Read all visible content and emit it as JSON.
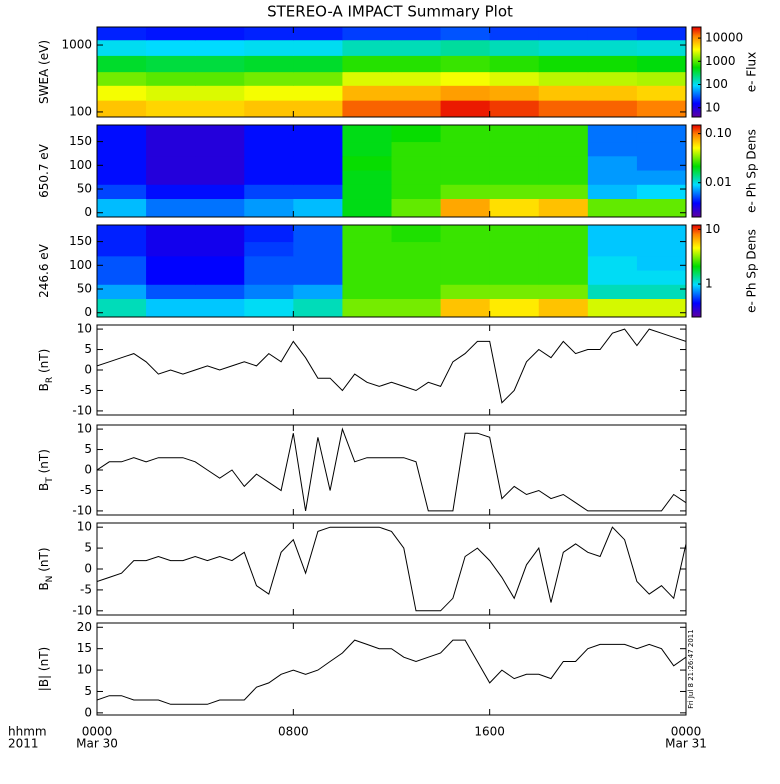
{
  "chart_data": [
    {
      "type": "heatmap",
      "title": "STEREO-A IMPACT Summary Plot",
      "ylabel": "SWEA (eV)",
      "log": true,
      "xlim": [
        0,
        24
      ],
      "ylim": [
        84,
        1860
      ],
      "yticks": [
        100,
        1000
      ],
      "x_edges": [
        0,
        2,
        4,
        6,
        8,
        10,
        12,
        14,
        16,
        18,
        20,
        22,
        24
      ],
      "y_edges": [
        84,
        150,
        250,
        400,
        700,
        1200,
        1860
      ],
      "z": [
        [
          6000,
          5000,
          5000,
          6000,
          6000,
          15000,
          15000,
          25000,
          20000,
          15000,
          15000,
          12000
        ],
        [
          3000,
          2500,
          2500,
          3000,
          3000,
          7000,
          7000,
          9000,
          8000,
          6000,
          6000,
          5000
        ],
        [
          1200,
          1000,
          1000,
          1200,
          1200,
          2500,
          2500,
          3000,
          2500,
          2000,
          2000,
          1800
        ],
        [
          400,
          350,
          350,
          400,
          400,
          700,
          700,
          800,
          700,
          600,
          600,
          500
        ],
        [
          100,
          90,
          90,
          100,
          100,
          150,
          150,
          180,
          150,
          130,
          130,
          120
        ],
        [
          20,
          18,
          18,
          20,
          20,
          25,
          25,
          30,
          25,
          25,
          25,
          22
        ]
      ],
      "colormap": "rainbow",
      "zlog": true,
      "zlim": [
        4,
        30000
      ],
      "zticks": [
        10,
        100,
        1000,
        10000
      ],
      "zlabel": "e- Flux"
    },
    {
      "type": "heatmap",
      "ylabel": "650.7 eV",
      "log": false,
      "xlim": [
        0,
        24
      ],
      "ylim": [
        -9,
        185
      ],
      "yticks": [
        0,
        50,
        100,
        150
      ],
      "x_edges": [
        0,
        2,
        4,
        6,
        8,
        10,
        12,
        14,
        16,
        18,
        20,
        22,
        24
      ],
      "y_edges": [
        -9,
        30,
        60,
        90,
        120,
        150,
        185
      ],
      "z": [
        [
          0.008,
          0.006,
          0.006,
          0.007,
          0.008,
          0.02,
          0.03,
          0.08,
          0.06,
          0.07,
          0.03,
          0.03
        ],
        [
          0.005,
          0.004,
          0.004,
          0.005,
          0.005,
          0.02,
          0.025,
          0.03,
          0.03,
          0.03,
          0.008,
          0.009
        ],
        [
          0.004,
          0.003,
          0.003,
          0.004,
          0.004,
          0.02,
          0.025,
          0.025,
          0.025,
          0.025,
          0.007,
          0.007
        ],
        [
          0.004,
          0.003,
          0.003,
          0.004,
          0.004,
          0.022,
          0.025,
          0.025,
          0.025,
          0.025,
          0.007,
          0.006
        ],
        [
          0.004,
          0.003,
          0.003,
          0.004,
          0.004,
          0.02,
          0.025,
          0.025,
          0.025,
          0.025,
          0.006,
          0.006
        ],
        [
          0.004,
          0.003,
          0.003,
          0.004,
          0.004,
          0.02,
          0.022,
          0.025,
          0.025,
          0.025,
          0.006,
          0.006
        ]
      ],
      "colormap": "rainbow",
      "zlog": true,
      "zlim": [
        0.002,
        0.15
      ],
      "zticks": [
        0.01,
        {
          "value": 0.1,
          "label": "0.10"
        }
      ],
      "zlabel": "e- Ph Sp Dens"
    },
    {
      "type": "heatmap",
      "ylabel": "246.6 eV",
      "log": false,
      "xlim": [
        0,
        24
      ],
      "ylim": [
        -9,
        185
      ],
      "yticks": [
        0,
        50,
        100,
        150
      ],
      "x_edges": [
        0,
        2,
        4,
        6,
        8,
        10,
        12,
        14,
        16,
        18,
        20,
        22,
        24
      ],
      "y_edges": [
        -9,
        30,
        60,
        90,
        120,
        150,
        185
      ],
      "z": [
        [
          1.2,
          0.9,
          0.9,
          1,
          1.2,
          3,
          3,
          6,
          5,
          6,
          4,
          4
        ],
        [
          0.8,
          0.6,
          0.6,
          0.7,
          0.8,
          2.5,
          2.5,
          3,
          3,
          3,
          1.2,
          1.2
        ],
        [
          0.6,
          0.45,
          0.45,
          0.6,
          0.6,
          2.5,
          2.5,
          2.5,
          2.5,
          2.5,
          1,
          1
        ],
        [
          0.6,
          0.45,
          0.45,
          0.6,
          0.6,
          2.5,
          2.5,
          2.5,
          2.5,
          2.5,
          1,
          0.9
        ],
        [
          0.5,
          0.4,
          0.4,
          0.55,
          0.6,
          2.5,
          2.5,
          2.5,
          2.5,
          2.5,
          0.9,
          0.9
        ],
        [
          0.5,
          0.4,
          0.4,
          0.5,
          0.6,
          2.5,
          2.3,
          2.5,
          2.5,
          2.5,
          0.9,
          0.9
        ]
      ],
      "colormap": "rainbow",
      "zlog": true,
      "zlim": [
        0.25,
        12
      ],
      "zticks": [
        1,
        10
      ],
      "zlabel": "e- Ph Sp Dens"
    },
    {
      "type": "line",
      "ylabel": "B",
      "ylabel_sub": "R",
      "ylabel_unit": " (nT)",
      "color": "#000000",
      "xlim": [
        0,
        24
      ],
      "ylim": [
        -11,
        11
      ],
      "yticks": [
        -10,
        -5,
        0,
        5,
        10
      ],
      "x": [
        0,
        0.5,
        1,
        1.5,
        2,
        2.5,
        3,
        3.5,
        4,
        4.5,
        5,
        5.5,
        6,
        6.5,
        7,
        7.5,
        8,
        8.5,
        9,
        9.5,
        10,
        10.5,
        11,
        11.5,
        12,
        12.5,
        13,
        13.5,
        14,
        14.5,
        15,
        15.5,
        16,
        16.5,
        17,
        17.5,
        18,
        18.5,
        19,
        19.5,
        20,
        20.5,
        21,
        21.5,
        22,
        22.5,
        23,
        23.5,
        24
      ],
      "values": [
        1,
        2,
        3,
        4,
        2,
        -1,
        0,
        -1,
        0,
        1,
        0,
        1,
        2,
        1,
        4,
        2,
        7,
        3,
        -2,
        -2,
        -5,
        -1,
        -3,
        -4,
        -3,
        -4,
        -5,
        -3,
        -4,
        2,
        4,
        7,
        7,
        -8,
        -5,
        2,
        5,
        3,
        7,
        4,
        5,
        5,
        9,
        10,
        6,
        10,
        9,
        8,
        7
      ]
    },
    {
      "type": "line",
      "ylabel": "B",
      "ylabel_sub": "T",
      "ylabel_unit": " (nT)",
      "color": "#000000",
      "xlim": [
        0,
        24
      ],
      "ylim": [
        -11,
        11
      ],
      "yticks": [
        -10,
        -5,
        0,
        5,
        10
      ],
      "x": [
        0,
        0.5,
        1,
        1.5,
        2,
        2.5,
        3,
        3.5,
        4,
        4.5,
        5,
        5.5,
        6,
        6.5,
        7,
        7.5,
        8,
        8.5,
        9,
        9.5,
        10,
        10.5,
        11,
        11.5,
        12,
        12.5,
        13,
        13.5,
        14,
        14.5,
        15,
        15.5,
        16,
        16.5,
        17,
        17.5,
        18,
        18.5,
        19,
        19.5,
        20,
        20.5,
        21,
        21.5,
        22,
        22.5,
        23,
        23.5,
        24
      ],
      "values": [
        0,
        2,
        2,
        3,
        2,
        3,
        3,
        3,
        2,
        0,
        -2,
        0,
        -4,
        -1,
        -3,
        -5,
        9,
        -10,
        8,
        -5,
        10,
        2,
        3,
        3,
        3,
        3,
        2,
        -10,
        -10,
        -10,
        9,
        9,
        8,
        -7,
        -4,
        -6,
        -5,
        -7,
        -6,
        -8,
        -10,
        -10,
        -10,
        -10,
        -10,
        -10,
        -10,
        -6,
        -8
      ]
    },
    {
      "type": "line",
      "ylabel": "B",
      "ylabel_sub": "N",
      "ylabel_unit": " (nT)",
      "color": "#000000",
      "xlim": [
        0,
        24
      ],
      "ylim": [
        -11,
        11
      ],
      "yticks": [
        -10,
        -5,
        0,
        5,
        10
      ],
      "x": [
        0,
        0.5,
        1,
        1.5,
        2,
        2.5,
        3,
        3.5,
        4,
        4.5,
        5,
        5.5,
        6,
        6.5,
        7,
        7.5,
        8,
        8.5,
        9,
        9.5,
        10,
        10.5,
        11,
        11.5,
        12,
        12.5,
        13,
        13.5,
        14,
        14.5,
        15,
        15.5,
        16,
        16.5,
        17,
        17.5,
        18,
        18.5,
        19,
        19.5,
        20,
        20.5,
        21,
        21.5,
        22,
        22.5,
        23,
        23.5,
        24
      ],
      "values": [
        -3,
        -2,
        -1,
        2,
        2,
        3,
        2,
        2,
        3,
        2,
        3,
        2,
        4,
        -4,
        -6,
        4,
        7,
        -1,
        9,
        10,
        10,
        10,
        10,
        10,
        9,
        5,
        -10,
        -10,
        -10,
        -7,
        3,
        5,
        2,
        -2,
        -7,
        1,
        5,
        -8,
        4,
        6,
        4,
        3,
        10,
        7,
        -3,
        -6,
        -4,
        -7,
        6
      ]
    },
    {
      "type": "line",
      "ylabel": "|B| (nT)",
      "color": "#000000",
      "xlim": [
        0,
        24
      ],
      "ylim": [
        -0.5,
        21
      ],
      "yticks": [
        0,
        5,
        10,
        15,
        20
      ],
      "x": [
        0,
        0.5,
        1,
        1.5,
        2,
        2.5,
        3,
        3.5,
        4,
        4.5,
        5,
        5.5,
        6,
        6.5,
        7,
        7.5,
        8,
        8.5,
        9,
        9.5,
        10,
        10.5,
        11,
        11.5,
        12,
        12.5,
        13,
        13.5,
        14,
        14.5,
        15,
        15.5,
        16,
        16.5,
        17,
        17.5,
        18,
        18.5,
        19,
        19.5,
        20,
        20.5,
        21,
        21.5,
        22,
        22.5,
        23,
        23.5,
        24
      ],
      "values": [
        3,
        4,
        4,
        3,
        3,
        3,
        2,
        2,
        2,
        2,
        3,
        3,
        3,
        6,
        7,
        9,
        10,
        9,
        10,
        12,
        14,
        17,
        16,
        15,
        15,
        13,
        12,
        13,
        14,
        17,
        17,
        12,
        7,
        10,
        8,
        9,
        9,
        8,
        12,
        12,
        15,
        16,
        16,
        16,
        15,
        16,
        15,
        11,
        13
      ],
      "xticks": [
        {
          "value": 0,
          "label": "0000"
        },
        {
          "value": 8,
          "label": "0800"
        },
        {
          "value": 16,
          "label": "1600"
        },
        {
          "value": 24,
          "label": "0000"
        }
      ],
      "date_labels": [
        {
          "value": 0,
          "label": "Mar 30"
        },
        {
          "value": 24,
          "label": "Mar 31"
        }
      ],
      "xlabel": "hhmm",
      "xlabel_sub": "2011",
      "annotation": "Fri Jul  8 21:26:47 2011"
    }
  ]
}
